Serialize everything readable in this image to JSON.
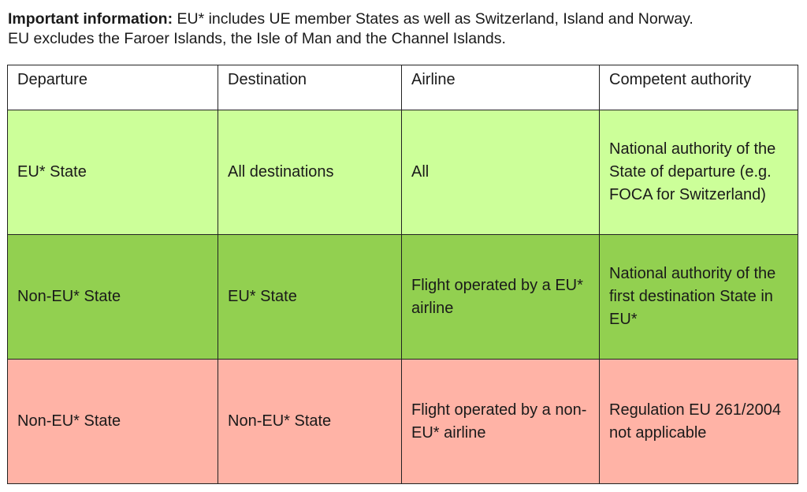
{
  "note": {
    "bold": "Important information:",
    "line1": " EU* includes UE member States as well as Switzerland, Island and Norway.",
    "line2": "EU excludes the Faroer Islands, the Isle of Man and the Channel Islands."
  },
  "table": {
    "headers": [
      "Departure",
      "Destination",
      "Airline",
      "Competent authority"
    ],
    "rows": [
      {
        "color": "#ccff99",
        "cells": [
          "EU* State",
          "All destinations",
          "All",
          "National authority of the State of departure (e.g. FOCA for Switzerland)"
        ]
      },
      {
        "color": "#92d050",
        "cells": [
          "Non-EU* State",
          "EU* State",
          "Flight operated by a EU* airline",
          "National authority of the first destination State in EU*"
        ]
      },
      {
        "color": "#ffb3a6",
        "cells": [
          "Non-EU* State",
          "Non-EU* State",
          "Flight operated by a non-EU* airline",
          "Regulation EU 261/2004 not applicable"
        ]
      }
    ]
  }
}
